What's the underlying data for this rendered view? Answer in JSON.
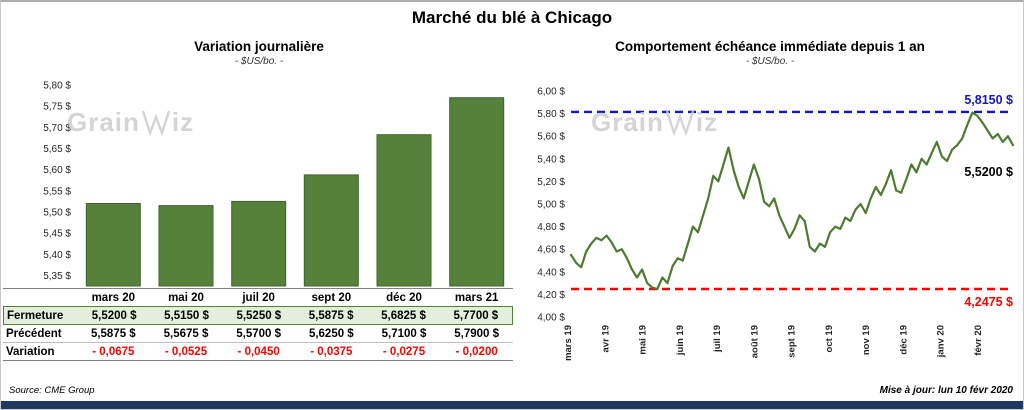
{
  "page": {
    "title": "Marché du blé à Chicago",
    "source": "Source: CME Group",
    "updated": "Mise à jour: lun 10 févr 2020",
    "watermark": {
      "prefix": "Grain",
      "suffix": "iz"
    }
  },
  "colors": {
    "bar_fill": "#55813B",
    "bar_stroke": "#41632C",
    "line": "#4E7B2F",
    "blue": "#1414CC",
    "red": "#FF0000",
    "fermeture_bg": "#E2EFDA",
    "fermeture_border": "#548235",
    "navy": "#1F3864",
    "watermark": "#CDCDCD"
  },
  "chart_data": [
    {
      "type": "bar",
      "title": "Variation journalière",
      "subtitle": "- $US/bo. -",
      "categories": [
        "mars 20",
        "mai 20",
        "juil 20",
        "sept 20",
        "déc 20",
        "mars 21"
      ],
      "values": [
        5.52,
        5.515,
        5.525,
        5.5875,
        5.6825,
        5.77
      ],
      "ylim": [
        5.325,
        5.8
      ],
      "yticks": [
        5.35,
        5.4,
        5.45,
        5.5,
        5.55,
        5.6,
        5.65,
        5.7,
        5.75,
        5.8
      ],
      "grid": false,
      "legend": false
    },
    {
      "type": "line",
      "title": "Comportement échéance immédiate depuis 1 an",
      "subtitle": "- $US/bo. -",
      "x_labels": [
        "mars 19",
        "avr 19",
        "mai 19",
        "juin 19",
        "juil 19",
        "août 19",
        "sept 19",
        "oct 19",
        "nov 19",
        "déc 19",
        "janv 20",
        "févr 20"
      ],
      "values": [
        4.55,
        4.48,
        4.44,
        4.58,
        4.65,
        4.7,
        4.68,
        4.72,
        4.66,
        4.58,
        4.6,
        4.52,
        4.42,
        4.35,
        4.42,
        4.3,
        4.26,
        4.2475,
        4.35,
        4.3,
        4.45,
        4.52,
        4.5,
        4.65,
        4.8,
        4.75,
        4.9,
        5.05,
        5.25,
        5.2,
        5.35,
        5.5,
        5.3,
        5.15,
        5.05,
        5.2,
        5.35,
        5.22,
        5.02,
        4.98,
        5.05,
        4.9,
        4.8,
        4.7,
        4.78,
        4.9,
        4.85,
        4.62,
        4.58,
        4.65,
        4.62,
        4.75,
        4.8,
        4.78,
        4.88,
        4.85,
        4.95,
        5.0,
        4.92,
        5.05,
        5.15,
        5.08,
        5.18,
        5.3,
        5.12,
        5.1,
        5.22,
        5.35,
        5.28,
        5.4,
        5.35,
        5.45,
        5.55,
        5.42,
        5.38,
        5.48,
        5.52,
        5.58,
        5.7,
        5.81,
        5.78,
        5.72,
        5.65,
        5.58,
        5.62,
        5.55,
        5.6,
        5.52
      ],
      "ylim": [
        4.0,
        6.0
      ],
      "ytick_step": 0.2,
      "grid": false,
      "legend": false,
      "ref_lines": [
        {
          "name": "high-line",
          "value": 5.815,
          "label": "5,8150 $",
          "color": "#1414CC",
          "label_position": "above"
        },
        {
          "name": "low-line",
          "value": 4.2475,
          "label": "4,2475 $",
          "color": "#FF0000",
          "label_position": "below"
        }
      ],
      "last_label": "5,5200 $"
    }
  ],
  "table": {
    "rows": [
      {
        "key": "fermeture",
        "label": "Fermeture",
        "values": [
          "5,5200  $",
          "5,5150  $",
          "5,5250  $",
          "5,5875  $",
          "5,6825  $",
          "5,7700  $"
        ]
      },
      {
        "key": "precedent",
        "label": "Précédent",
        "values": [
          "5,5875  $",
          "5,5675  $",
          "5,5700  $",
          "5,6250  $",
          "5,7100  $",
          "5,7900  $"
        ]
      },
      {
        "key": "variation",
        "label": "Variation",
        "values": [
          "- 0,0675",
          "- 0,0525",
          "- 0,0450",
          "- 0,0375",
          "- 0,0275",
          "- 0,0200"
        ]
      }
    ]
  }
}
